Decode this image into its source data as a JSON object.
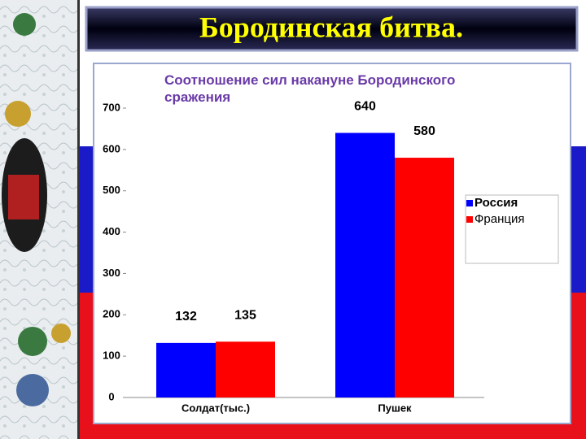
{
  "slide_title": "Бородинская битва.",
  "chart_data": {
    "type": "bar",
    "title": "Соотношение сил накануне Бородинского сражения",
    "categories": [
      "Солдат(тыс.)",
      "Пушек"
    ],
    "series": [
      {
        "name": "Россия",
        "color": "#0000ff",
        "values": [
          132,
          640
        ]
      },
      {
        "name": "Франция",
        "color": "#ff0000",
        "values": [
          135,
          580
        ]
      }
    ],
    "ylim": [
      0,
      700
    ],
    "yticks": [
      0,
      100,
      200,
      300,
      400,
      500,
      600,
      700
    ],
    "grid": false,
    "legend": "right"
  }
}
